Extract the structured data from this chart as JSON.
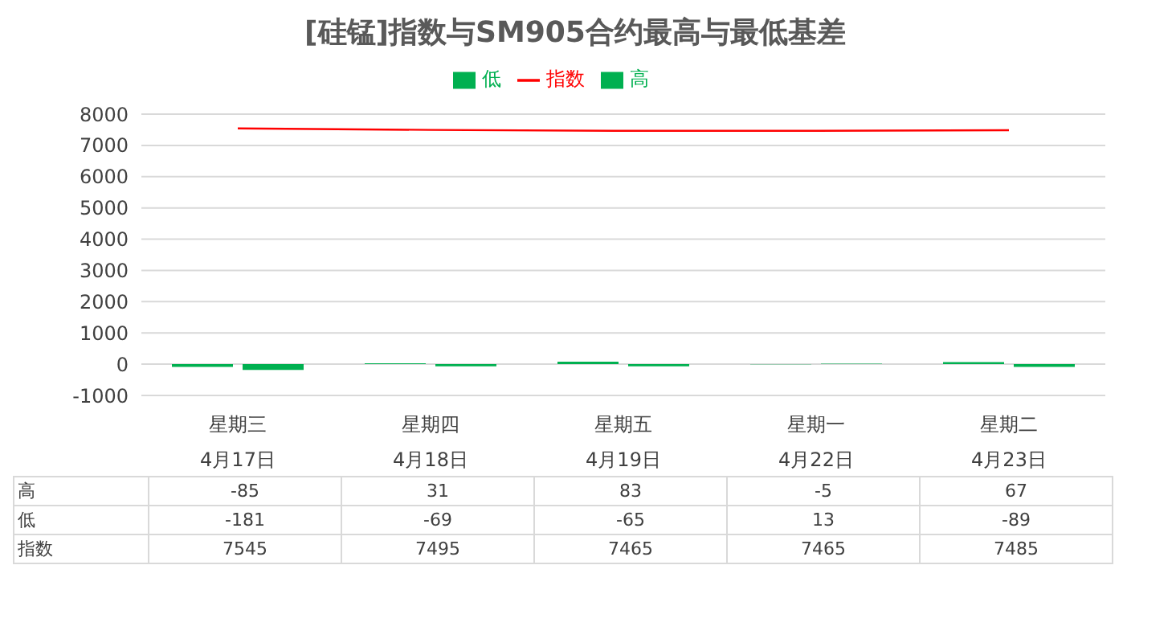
{
  "chart_data": {
    "type": "bar",
    "title": "[硅锰]指数与SM905合约最高与最低基差",
    "categories": [
      "星期三\n4月17日",
      "星期四\n4月18日",
      "星期五\n4月19日",
      "星期一\n4月22日",
      "星期二\n4月23日"
    ],
    "series": [
      {
        "name": "高",
        "color": "#00b050",
        "values": [
          -85,
          31,
          83,
          -5,
          67
        ]
      },
      {
        "name": "低",
        "color": "#00b050",
        "values": [
          -181,
          -69,
          -65,
          13,
          -89
        ]
      },
      {
        "name": "指数",
        "type": "line",
        "color": "#ff0000",
        "values": [
          7545,
          7495,
          7465,
          7465,
          7485
        ]
      }
    ],
    "ylim": [
      -1000,
      8000
    ],
    "yticks": [
      -1000,
      0,
      1000,
      2000,
      3000,
      4000,
      5000,
      6000,
      7000,
      8000
    ],
    "grid": "y",
    "legend": "top",
    "marker": "none",
    "data_labels": true
  }
}
